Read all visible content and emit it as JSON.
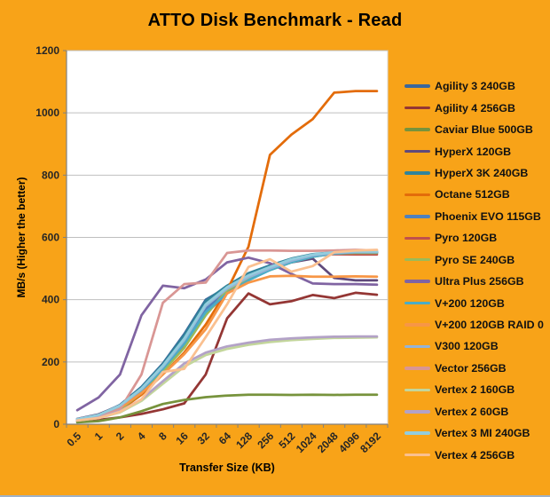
{
  "colors": {
    "background": "#F8A318",
    "plot_background": "#FFFFFF",
    "plot_border": "#D9D9D9",
    "gridline": "#BFBFBF",
    "axis": "#808080",
    "title_text": "#000000",
    "tick_text": "#262626",
    "window_edge": "#9FB2C8"
  },
  "chart_data": {
    "type": "line",
    "title": "ATTO Disk Benchmark - Read",
    "xlabel": "Transfer Size (KB)",
    "ylabel": "MB/s (Higher the better)",
    "categories": [
      "0.5",
      "1",
      "2",
      "4",
      "8",
      "16",
      "32",
      "64",
      "128",
      "256",
      "512",
      "1024",
      "2048",
      "4096",
      "8192"
    ],
    "ylim": [
      0,
      1200
    ],
    "ytick_step": 200,
    "grid": true,
    "legend_position": "right",
    "series": [
      {
        "name": "Agility 3 240GB",
        "color": "#3A679C",
        "values": [
          16,
          30,
          62,
          120,
          195,
          290,
          400,
          440,
          480,
          505,
          530,
          545,
          550,
          551,
          551
        ]
      },
      {
        "name": "Agility 4 256GB",
        "color": "#943634",
        "values": [
          9,
          14,
          22,
          33,
          48,
          67,
          160,
          340,
          420,
          385,
          395,
          415,
          405,
          422,
          416
        ]
      },
      {
        "name": "Caviar Blue 500GB",
        "color": "#77933C",
        "values": [
          6,
          10,
          22,
          42,
          65,
          78,
          87,
          92,
          95,
          95,
          94,
          95,
          94,
          95,
          95
        ]
      },
      {
        "name": "HyperX 120GB",
        "color": "#604A7B",
        "values": [
          17,
          32,
          60,
          115,
          185,
          270,
          380,
          430,
          468,
          498,
          520,
          532,
          470,
          462,
          462
        ]
      },
      {
        "name": "HyperX 3K 240GB",
        "color": "#31849B",
        "values": [
          16,
          30,
          60,
          118,
          192,
          285,
          395,
          445,
          485,
          510,
          532,
          546,
          552,
          554,
          554
        ]
      },
      {
        "name": "Octane 512GB",
        "color": "#E36C0A",
        "values": [
          12,
          22,
          45,
          95,
          160,
          230,
          320,
          430,
          570,
          865,
          930,
          980,
          1065,
          1070,
          1070
        ]
      },
      {
        "name": "Phoenix EVO 115GB",
        "color": "#4F81BD",
        "values": [
          15,
          28,
          55,
          110,
          180,
          265,
          370,
          425,
          468,
          498,
          522,
          540,
          548,
          550,
          550
        ]
      },
      {
        "name": "Pyro 120GB",
        "color": "#C0504D",
        "values": [
          14,
          25,
          50,
          105,
          175,
          250,
          355,
          420,
          465,
          500,
          525,
          540,
          546,
          545,
          545
        ]
      },
      {
        "name": "Pyro SE 240GB",
        "color": "#9BBB59",
        "values": [
          13,
          24,
          48,
          100,
          170,
          245,
          350,
          430,
          470,
          495,
          520,
          538,
          548,
          550,
          550
        ]
      },
      {
        "name": "Ultra Plus 256GB",
        "color": "#8064A2",
        "values": [
          45,
          86,
          160,
          350,
          445,
          437,
          465,
          520,
          535,
          517,
          483,
          452,
          450,
          450,
          448
        ]
      },
      {
        "name": "V+200 120GB",
        "color": "#4BACC6",
        "values": [
          15,
          27,
          54,
          108,
          178,
          258,
          360,
          420,
          462,
          495,
          520,
          538,
          548,
          552,
          552
        ]
      },
      {
        "name": "V+200 120GB RAID 0",
        "color": "#F79646",
        "values": [
          14,
          26,
          52,
          100,
          160,
          225,
          305,
          420,
          455,
          475,
          477,
          474,
          474,
          475,
          474
        ]
      },
      {
        "name": "V300 120GB",
        "color": "#95B3D7",
        "values": [
          16,
          29,
          58,
          112,
          185,
          270,
          380,
          435,
          472,
          500,
          525,
          542,
          550,
          553,
          553
        ]
      },
      {
        "name": "Vector 256GB",
        "color": "#D99694",
        "values": [
          14,
          24,
          48,
          160,
          390,
          450,
          455,
          550,
          558,
          558,
          557,
          557,
          558,
          560,
          558
        ]
      },
      {
        "name": "Vertex 2 160GB",
        "color": "#C3D69B",
        "values": [
          12,
          20,
          38,
          75,
          130,
          185,
          222,
          242,
          255,
          264,
          270,
          274,
          277,
          278,
          279
        ]
      },
      {
        "name": "Vertex 2 60GB",
        "color": "#B3A2C7",
        "values": [
          13,
          22,
          42,
          80,
          138,
          195,
          230,
          250,
          262,
          271,
          276,
          279,
          281,
          282,
          282
        ]
      },
      {
        "name": "Vertex 3 MI 240GB",
        "color": "#93CDDD",
        "values": [
          16,
          30,
          60,
          115,
          188,
          275,
          385,
          440,
          478,
          505,
          530,
          545,
          552,
          555,
          555
        ]
      },
      {
        "name": "Vertex 4 256GB",
        "color": "#FAC090",
        "values": [
          12,
          20,
          40,
          80,
          168,
          178,
          280,
          385,
          505,
          530,
          490,
          508,
          552,
          558,
          560
        ]
      }
    ]
  }
}
